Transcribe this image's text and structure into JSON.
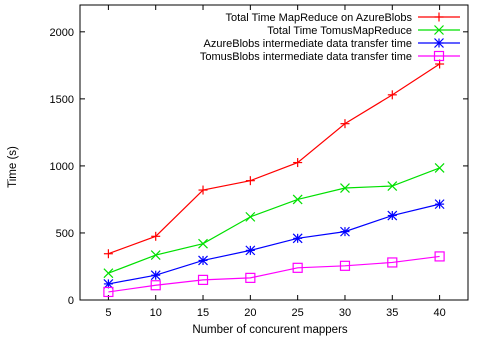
{
  "chart_data": {
    "type": "line",
    "title": "",
    "xlabel": "Number of concurent mappers",
    "ylabel": "Time (s)",
    "x": [
      5,
      10,
      15,
      20,
      25,
      30,
      35,
      40
    ],
    "xlim": [
      2,
      43
    ],
    "ylim": [
      0,
      2200
    ],
    "xticks": [
      5,
      10,
      15,
      20,
      25,
      30,
      35,
      40
    ],
    "yticks": [
      0,
      500,
      1000,
      1500,
      2000
    ],
    "grid": false,
    "legend_position": "top-right",
    "series": [
      {
        "name": "Total Time MapReduce on AzureBlobs",
        "color": "#ff0000",
        "marker": "plus",
        "values": [
          345,
          475,
          820,
          890,
          1025,
          1315,
          1530,
          1760
        ]
      },
      {
        "name": "Total Time TomusMapReduce",
        "color": "#00e000",
        "marker": "cross",
        "values": [
          200,
          335,
          420,
          620,
          750,
          835,
          850,
          985
        ]
      },
      {
        "name": "AzureBlobs intermediate data transfer time",
        "color": "#0000ff",
        "marker": "star",
        "values": [
          120,
          185,
          295,
          370,
          460,
          510,
          630,
          715
        ]
      },
      {
        "name": "TomusBlobs intermediate data transfer time",
        "color": "#ff00ff",
        "marker": "square",
        "values": [
          60,
          110,
          150,
          165,
          240,
          255,
          280,
          325
        ]
      }
    ]
  }
}
